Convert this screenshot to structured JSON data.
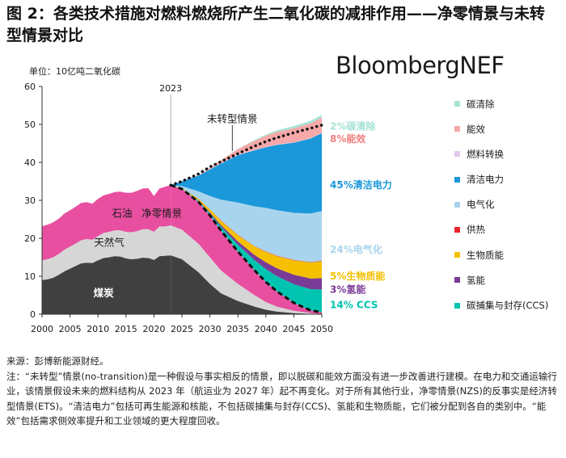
{
  "title": "图 2：各类技术措施对燃料燃烧所产生二氧化碳的减排作用——净零情景与未转型情景对比",
  "brand": "BloombergNEF",
  "unit_label": "单位：10亿吨二氧化碳",
  "notes": {
    "source": "来源：彭博新能源财经。",
    "note": "注：“未转型”情景(no-transition)是一种假设与事实相反的情景，即以脱碳和能效方面没有进一步改善进行建模。在电力和交通运输行业，该情景假设未来的燃料结构从 2023 年（航运业为 2027 年）起不再变化。对于所有其他行业，净零情景(NZS)的反事实是经济转型情景(ETS)。“清洁电力”包括可再生能源和核能，不包括碳捕集与封存(CCS)、氢能和生物质能，它们被分配到各自的类别中。“能效”包括需求侧效率提升和工业领域的更大程度回收。"
  },
  "chart_data": {
    "type": "area",
    "title": "各类技术措施对燃料燃烧所产生二氧化碳的减排作用——净零情景与未转型情景对比",
    "ylabel": "单位：10亿吨二氧化碳",
    "xlabel": "",
    "ylim": [
      0,
      60
    ],
    "xlim": [
      2000,
      2050
    ],
    "xticks": [
      "2000",
      "2005",
      "2010",
      "2015",
      "2020",
      "2025",
      "2030",
      "2035",
      "2040",
      "2045",
      "2050"
    ],
    "yticks": [
      "0",
      "10",
      "20",
      "30",
      "40",
      "50",
      "60"
    ],
    "grid": false,
    "marker": {
      "x": 2023,
      "label": "2023"
    },
    "historical": {
      "years": [
        2000,
        2001,
        2002,
        2003,
        2004,
        2005,
        2006,
        2007,
        2008,
        2009,
        2010,
        2011,
        2012,
        2013,
        2014,
        2015,
        2016,
        2017,
        2018,
        2019,
        2020,
        2021,
        2022,
        2023
      ],
      "series": [
        {
          "name": "煤炭",
          "color": "#404040",
          "values": [
            9.0,
            9.2,
            9.6,
            10.4,
            11.3,
            12.0,
            12.7,
            13.4,
            13.6,
            13.5,
            14.2,
            14.8,
            15.0,
            15.3,
            15.2,
            14.7,
            14.5,
            14.6,
            14.9,
            14.8,
            14.3,
            15.3,
            15.4,
            15.5
          ]
        },
        {
          "name": "天然气",
          "color": "#d6d6d6",
          "values": [
            5.2,
            5.3,
            5.4,
            5.5,
            5.7,
            5.8,
            5.9,
            6.1,
            6.2,
            6.1,
            6.4,
            6.6,
            6.7,
            6.8,
            6.9,
            7.0,
            7.1,
            7.3,
            7.5,
            7.6,
            7.4,
            7.8,
            7.7,
            7.9
          ]
        },
        {
          "name": "石油",
          "color": "#e84fa0",
          "values": [
            9.0,
            9.1,
            9.2,
            9.3,
            9.5,
            9.6,
            9.7,
            9.8,
            9.7,
            9.5,
            9.8,
            9.9,
            10.0,
            10.1,
            10.2,
            10.3,
            10.4,
            10.6,
            10.7,
            10.8,
            9.4,
            10.0,
            10.5,
            10.6
          ]
        }
      ]
    },
    "projection": {
      "years": [
        2023,
        2025,
        2028,
        2030,
        2032,
        2035,
        2038,
        2040,
        2042,
        2045,
        2048,
        2050
      ],
      "no_transition_total": [
        34.0,
        35.0,
        37.0,
        38.8,
        40.2,
        42.3,
        44.3,
        45.5,
        46.5,
        47.8,
        49.0,
        49.8
      ],
      "net_zero_total": [
        34.0,
        33.0,
        29.5,
        26.0,
        22.0,
        16.5,
        11.5,
        8.5,
        6.0,
        3.0,
        1.0,
        0.5
      ],
      "residual_coal": [
        15.5,
        14.5,
        11.0,
        8.0,
        5.5,
        3.5,
        2.0,
        1.2,
        0.7,
        0.3,
        0.1,
        0.0
      ],
      "residual_gas": [
        7.9,
        7.8,
        7.5,
        7.0,
        6.0,
        4.5,
        3.0,
        2.0,
        1.3,
        0.6,
        0.2,
        0.0
      ],
      "residual_oil": [
        10.6,
        10.7,
        11.0,
        11.0,
        10.5,
        8.5,
        6.5,
        5.3,
        4.0,
        2.1,
        0.7,
        0.5
      ],
      "abatement_series": [
        {
          "name": "碳捕集与封存(CCS)",
          "color": "#00c4b0",
          "values": [
            0,
            0.1,
            0.3,
            0.5,
            1.0,
            1.8,
            2.7,
            3.4,
            4.0,
            4.9,
            5.6,
            6.0
          ]
        },
        {
          "name": "氢能",
          "color": "#7a3b96",
          "values": [
            0,
            0.05,
            0.1,
            0.3,
            0.5,
            0.9,
            1.4,
            1.8,
            2.1,
            2.5,
            2.8,
            3.0
          ]
        },
        {
          "name": "生物质能",
          "color": "#f5c000",
          "values": [
            0,
            0.1,
            0.4,
            0.8,
            1.1,
            1.6,
            2.2,
            2.7,
            3.2,
            3.8,
            4.2,
            4.5
          ]
        },
        {
          "name": "供热",
          "color": "#e8262a",
          "values": [
            0,
            0,
            0.05,
            0.05,
            0.1,
            0.1,
            0.1,
            0.1,
            0.1,
            0.1,
            0.1,
            0.1
          ]
        },
        {
          "name": "电气化",
          "color": "#a9d4ed",
          "values": [
            0,
            0.5,
            2.0,
            3.5,
            5.5,
            8.5,
            10.5,
            11.5,
            12.0,
            12.4,
            12.8,
            13.1
          ]
        },
        {
          "name": "清洁电力",
          "color": "#1b98d9",
          "values": [
            0,
            1.3,
            4.2,
            7.0,
            9.5,
            12.5,
            14.8,
            16.0,
            17.2,
            18.5,
            19.8,
            20.5
          ]
        },
        {
          "name": "燃料转换",
          "color": "#e2c8ec",
          "values": [
            0,
            0,
            0.05,
            0.05,
            0.1,
            0.1,
            0.1,
            0.1,
            0.1,
            0.1,
            0.1,
            0.1
          ]
        },
        {
          "name": "能效",
          "color": "#f7a8a8",
          "values": [
            0,
            0,
            0.1,
            0.4,
            0.8,
            1.5,
            2.4,
            2.9,
            3.3,
            3.7,
            3.9,
            4.0
          ]
        },
        {
          "name": "碳清除",
          "color": "#a6e3d5",
          "values": [
            0,
            0,
            0,
            0,
            0.02,
            0.05,
            0.2,
            0.3,
            0.45,
            0.55,
            0.65,
            0.7
          ]
        }
      ]
    },
    "annotations": {
      "coal": "煤炭",
      "gas": "天然气",
      "oil": "石油",
      "net_zero": "净零情景",
      "no_transition": "未转型情景",
      "year_marker": "2023"
    },
    "right_labels": [
      {
        "text": "2%碳清除",
        "color": "#a6e3d5",
        "value": 49.5
      },
      {
        "text": "8%能效",
        "color": "#f08080",
        "value": 46.2
      },
      {
        "text": "45%清洁电力",
        "color": "#1b98d9",
        "value": 34.0
      },
      {
        "text": "24%电气化",
        "color": "#a9d4ed",
        "value": 17.0
      },
      {
        "text": "5%生物质能",
        "color": "#f5c000",
        "value": 10.0
      },
      {
        "text": "3%氢能",
        "color": "#7a3b96",
        "value": 6.5
      },
      {
        "text": "14% CCS",
        "color": "#00c4b0",
        "value": 2.5
      }
    ],
    "legend": [
      {
        "label": "碳清除",
        "color": "#a6e3d5"
      },
      {
        "label": "能效",
        "color": "#f7a8a8"
      },
      {
        "label": "燃料转换",
        "color": "#e2c8ec"
      },
      {
        "label": "清洁电力",
        "color": "#1b98d9"
      },
      {
        "label": "电气化",
        "color": "#a9d4ed"
      },
      {
        "label": "供热",
        "color": "#e8262a"
      },
      {
        "label": "生物质能",
        "color": "#f5c000"
      },
      {
        "label": "氢能",
        "color": "#7a3b96"
      },
      {
        "label": "碳捕集与封存(CCS)",
        "color": "#00c4b0"
      }
    ]
  }
}
